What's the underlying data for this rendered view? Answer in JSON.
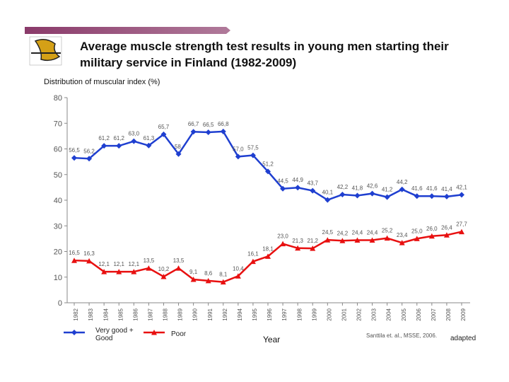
{
  "chart_data": {
    "type": "line",
    "title": "Average muscle strength test results in young men starting their military service in Finland (1982-2009)",
    "y_label": "Distribution of muscular index (%)",
    "x_label": "Year",
    "source": "Santtila et. al., MSSE, 2006.",
    "note": "adapted",
    "categories": [
      "1982",
      "1983",
      "1984",
      "1985",
      "1986",
      "1987",
      "1988",
      "1989",
      "1990",
      "1991",
      "1992",
      "1994",
      "1995",
      "1996",
      "1997",
      "1998",
      "1999",
      "2000",
      "2001",
      "2002",
      "2003",
      "2004",
      "2005",
      "2006",
      "2007",
      "2008",
      "2009"
    ],
    "series": [
      {
        "name": "Very good + Good",
        "color": "#1f3fd0",
        "values": [
          56.5,
          56.2,
          61.2,
          61.2,
          63.0,
          61.3,
          65.7,
          58,
          66.7,
          66.5,
          66.8,
          57.0,
          57.5,
          51.2,
          44.5,
          44.9,
          43.7,
          40.1,
          42.2,
          41.8,
          42.6,
          41.2,
          44.2,
          41.6,
          41.6,
          41.4,
          42.1
        ],
        "value_labels": [
          "56,5",
          "56,2",
          "61,2",
          "61,2",
          "63,0",
          "61,3",
          "65,7",
          "58,",
          "66,7",
          "66,5",
          "66,8",
          "57,0",
          "57,5",
          "51,2",
          "44,5",
          "44,9",
          "43,7",
          "40,1",
          "42,2",
          "41,8",
          "42,6",
          "41,2",
          "44,2",
          "41,6",
          "41,6",
          "41,4",
          "42,1"
        ]
      },
      {
        "name": "Poor",
        "color": "#e81010",
        "values": [
          16.5,
          16.3,
          12.1,
          12.1,
          12.1,
          13.5,
          10.2,
          13.5,
          9.1,
          8.6,
          8.1,
          10.4,
          16.1,
          18.1,
          23.0,
          21.3,
          21.2,
          24.5,
          24.2,
          24.4,
          24.4,
          25.2,
          23.4,
          25.0,
          26.0,
          26.4,
          27.7
        ],
        "value_labels": [
          "16,5",
          "16,3",
          "12,1",
          "12,1",
          "12,1",
          "13,5",
          "10,2",
          "13,5",
          "9,1",
          "8,6",
          "8,1",
          "10,4",
          "16,1",
          "18,1",
          "23,0",
          "21,3",
          "21,2",
          "24,5",
          "24,2",
          "24,4",
          "24,4",
          "25,2",
          "23,4",
          "25,0",
          "26,0",
          "26,4",
          "27,7"
        ]
      }
    ],
    "ylim": [
      0,
      80
    ],
    "yticks": [
      0,
      10,
      20,
      30,
      40,
      50,
      60,
      70,
      80
    ],
    "grid": false
  }
}
